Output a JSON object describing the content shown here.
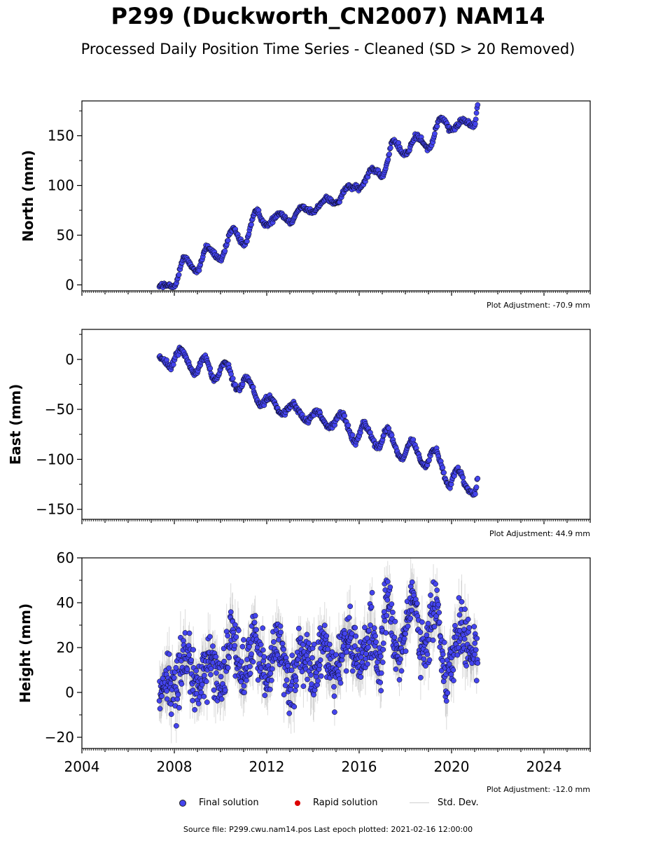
{
  "header": {
    "title": "P299 (Duckworth_CN2007) NAM14",
    "subtitle": "Processed Daily Position Time Series - Cleaned (SD > 20 Removed)"
  },
  "legend": {
    "final": "Final solution",
    "rapid": "Rapid solution",
    "std": "Std. Dev."
  },
  "footer": "Source file: P299.cwu.nam14.pos  Last epoch plotted: 2021-02-16 12:00:00",
  "colors": {
    "final": "#4444ee",
    "rapid": "#dd0000",
    "std": "#999999",
    "edge": "#000000"
  },
  "chart_data": [
    {
      "type": "scatter",
      "ylabel": "North (mm)",
      "adjustment": "Plot Adjustment: -70.9 mm",
      "xlim": [
        2004,
        2026
      ],
      "ylim": [
        -6,
        185
      ],
      "yticks": [
        0,
        50,
        100,
        150
      ],
      "trend": [
        [
          2007.35,
          0
        ],
        [
          2008.0,
          -2
        ],
        [
          2008.4,
          27
        ],
        [
          2009.0,
          14
        ],
        [
          2009.4,
          38
        ],
        [
          2010.0,
          26
        ],
        [
          2010.55,
          56
        ],
        [
          2011.0,
          40
        ],
        [
          2011.55,
          74
        ],
        [
          2012.0,
          60
        ],
        [
          2012.55,
          72
        ],
        [
          2013.0,
          64
        ],
        [
          2013.5,
          78
        ],
        [
          2014.0,
          73
        ],
        [
          2014.55,
          87
        ],
        [
          2015.0,
          82
        ],
        [
          2015.55,
          99
        ],
        [
          2016.0,
          97
        ],
        [
          2016.6,
          117
        ],
        [
          2017.0,
          110
        ],
        [
          2017.5,
          144
        ],
        [
          2018.0,
          131
        ],
        [
          2018.5,
          150
        ],
        [
          2019.0,
          137
        ],
        [
          2019.55,
          168
        ],
        [
          2020.0,
          155
        ],
        [
          2020.5,
          166
        ],
        [
          2021.0,
          160
        ],
        [
          2021.13,
          182
        ]
      ],
      "amplitude": 2,
      "series": [
        {
          "name": "Final solution",
          "x_range": [
            2007.35,
            2021.13
          ],
          "n": 520
        },
        {
          "name": "Rapid solution",
          "n": 0
        },
        {
          "name": "Std. Dev."
        }
      ]
    },
    {
      "type": "scatter",
      "ylabel": "East (mm)",
      "adjustment": "Plot Adjustment: 44.9 mm",
      "xlim": [
        2004,
        2026
      ],
      "ylim": [
        -160,
        30
      ],
      "yticks": [
        -150,
        -100,
        -50,
        0
      ],
      "trend": [
        [
          2007.35,
          2
        ],
        [
          2007.85,
          -6
        ],
        [
          2008.25,
          10
        ],
        [
          2008.9,
          -14
        ],
        [
          2009.3,
          2
        ],
        [
          2009.75,
          -20
        ],
        [
          2010.2,
          -3
        ],
        [
          2010.75,
          -30
        ],
        [
          2011.1,
          -18
        ],
        [
          2011.75,
          -45
        ],
        [
          2012.1,
          -38
        ],
        [
          2012.7,
          -55
        ],
        [
          2013.1,
          -45
        ],
        [
          2013.75,
          -62
        ],
        [
          2014.1,
          -52
        ],
        [
          2014.75,
          -68
        ],
        [
          2015.2,
          -55
        ],
        [
          2015.85,
          -82
        ],
        [
          2016.2,
          -65
        ],
        [
          2016.85,
          -88
        ],
        [
          2017.2,
          -70
        ],
        [
          2017.85,
          -100
        ],
        [
          2018.25,
          -82
        ],
        [
          2018.85,
          -107
        ],
        [
          2019.25,
          -90
        ],
        [
          2019.9,
          -125
        ],
        [
          2020.25,
          -110
        ],
        [
          2020.8,
          -132
        ],
        [
          2021.0,
          -135
        ],
        [
          2021.13,
          -120
        ]
      ],
      "amplitude": 2,
      "series": [
        {
          "name": "Final solution",
          "x_range": [
            2007.35,
            2021.13
          ],
          "n": 520
        },
        {
          "name": "Rapid solution",
          "n": 0
        },
        {
          "name": "Std. Dev."
        }
      ]
    },
    {
      "type": "scatter",
      "ylabel": "Height (mm)",
      "adjustment": "Plot Adjustment: -12.0 mm",
      "xlim": [
        2004,
        2026
      ],
      "ylim": [
        -25,
        60
      ],
      "yticks": [
        -20,
        0,
        20,
        40,
        60
      ],
      "xticks": [
        2004,
        2008,
        2012,
        2016,
        2020,
        2024
      ],
      "trend": [
        [
          2007.35,
          0
        ],
        [
          2007.7,
          6
        ],
        [
          2008.0,
          0
        ],
        [
          2008.4,
          18
        ],
        [
          2009.0,
          2
        ],
        [
          2009.5,
          15
        ],
        [
          2010.0,
          5
        ],
        [
          2010.5,
          25
        ],
        [
          2011.0,
          8
        ],
        [
          2011.5,
          25
        ],
        [
          2012.0,
          8
        ],
        [
          2012.5,
          22
        ],
        [
          2013.0,
          5
        ],
        [
          2013.5,
          18
        ],
        [
          2014.0,
          7
        ],
        [
          2014.5,
          20
        ],
        [
          2015.0,
          10
        ],
        [
          2015.5,
          24
        ],
        [
          2016.0,
          14
        ],
        [
          2016.5,
          26
        ],
        [
          2016.9,
          10
        ],
        [
          2017.2,
          40
        ],
        [
          2017.7,
          18
        ],
        [
          2018.3,
          40
        ],
        [
          2018.8,
          16
        ],
        [
          2019.3,
          38
        ],
        [
          2019.8,
          10
        ],
        [
          2020.4,
          28
        ],
        [
          2020.8,
          18
        ],
        [
          2021.13,
          20
        ]
      ],
      "amplitude": 9,
      "series": [
        {
          "name": "Final solution",
          "x_range": [
            2007.35,
            2021.13
          ],
          "n": 900
        },
        {
          "name": "Rapid solution",
          "n": 0
        },
        {
          "name": "Std. Dev."
        }
      ]
    }
  ]
}
